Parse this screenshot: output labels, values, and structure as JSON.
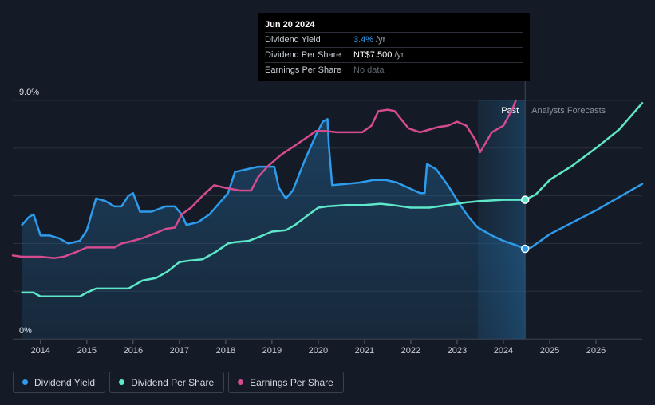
{
  "tooltip": {
    "date": "Jun 20 2024",
    "rows": [
      {
        "label": "Dividend Yield",
        "value": "3.4%",
        "unit": "/yr",
        "color": "#2d9cec"
      },
      {
        "label": "Dividend Per Share",
        "value": "NT$7.500",
        "unit": "/yr",
        "color": "#ffffff"
      },
      {
        "label": "Earnings Per Share",
        "value": "No data",
        "unit": "",
        "color": "#5f6670"
      }
    ]
  },
  "legend": [
    {
      "label": "Dividend Yield",
      "color": "#2d9cec"
    },
    {
      "label": "Dividend Per Share",
      "color": "#5de8c9"
    },
    {
      "label": "Earnings Per Share",
      "color": "#d44b8f"
    }
  ],
  "chart_data": {
    "type": "line",
    "y_axis_labels": [
      "9.0%",
      "0%"
    ],
    "ylim": [
      0,
      9.0
    ],
    "xlim": [
      2013.4,
      2027.0
    ],
    "x_ticks": [
      2014,
      2015,
      2016,
      2017,
      2018,
      2019,
      2020,
      2021,
      2022,
      2023,
      2024,
      2025,
      2026
    ],
    "past_label": "Past",
    "forecast_label": "Analysts Forecasts",
    "forecast_start": 2024.47,
    "shade_start": 2023.45,
    "grid": true,
    "series": [
      {
        "name": "Dividend Yield",
        "color": "#2d9cec",
        "unit": "%",
        "area": true,
        "points": [
          [
            2013.6,
            4.3
          ],
          [
            2013.75,
            4.6
          ],
          [
            2013.85,
            4.7
          ],
          [
            2014.0,
            3.9
          ],
          [
            2014.2,
            3.9
          ],
          [
            2014.4,
            3.8
          ],
          [
            2014.6,
            3.6
          ],
          [
            2014.85,
            3.7
          ],
          [
            2015.0,
            4.1
          ],
          [
            2015.2,
            5.3
          ],
          [
            2015.4,
            5.2
          ],
          [
            2015.6,
            5.0
          ],
          [
            2015.75,
            5.0
          ],
          [
            2015.9,
            5.4
          ],
          [
            2016.0,
            5.5
          ],
          [
            2016.15,
            4.8
          ],
          [
            2016.4,
            4.8
          ],
          [
            2016.7,
            5.0
          ],
          [
            2016.9,
            5.0
          ],
          [
            2017.05,
            4.7
          ],
          [
            2017.15,
            4.3
          ],
          [
            2017.4,
            4.4
          ],
          [
            2017.65,
            4.7
          ],
          [
            2017.85,
            5.1
          ],
          [
            2018.05,
            5.5
          ],
          [
            2018.2,
            6.3
          ],
          [
            2018.45,
            6.4
          ],
          [
            2018.7,
            6.5
          ],
          [
            2018.9,
            6.5
          ],
          [
            2019.05,
            6.5
          ],
          [
            2019.15,
            5.7
          ],
          [
            2019.3,
            5.3
          ],
          [
            2019.45,
            5.6
          ],
          [
            2019.7,
            6.7
          ],
          [
            2019.95,
            7.7
          ],
          [
            2020.1,
            8.2
          ],
          [
            2020.2,
            8.3
          ],
          [
            2020.23,
            7.3
          ],
          [
            2020.3,
            5.8
          ],
          [
            2020.6,
            5.85
          ],
          [
            2020.9,
            5.9
          ],
          [
            2021.2,
            6.0
          ],
          [
            2021.45,
            6.0
          ],
          [
            2021.7,
            5.9
          ],
          [
            2021.95,
            5.7
          ],
          [
            2022.2,
            5.5
          ],
          [
            2022.3,
            5.5
          ],
          [
            2022.35,
            6.6
          ],
          [
            2022.55,
            6.4
          ],
          [
            2022.8,
            5.8
          ],
          [
            2023.05,
            5.1
          ],
          [
            2023.25,
            4.6
          ],
          [
            2023.45,
            4.2
          ],
          [
            2023.75,
            3.9
          ],
          [
            2024.0,
            3.7
          ],
          [
            2024.25,
            3.55
          ],
          [
            2024.47,
            3.4
          ],
          [
            2024.6,
            3.45
          ],
          [
            2024.8,
            3.7
          ],
          [
            2025.0,
            3.95
          ],
          [
            2025.5,
            4.4
          ],
          [
            2026.0,
            4.85
          ],
          [
            2026.5,
            5.35
          ],
          [
            2027.0,
            5.85
          ]
        ]
      },
      {
        "name": "Dividend Per Share",
        "color": "#5de8c9",
        "unit": "NT$",
        "points": [
          [
            2013.6,
            1.75
          ],
          [
            2013.85,
            1.75
          ],
          [
            2014.0,
            1.6
          ],
          [
            2014.5,
            1.6
          ],
          [
            2014.85,
            1.6
          ],
          [
            2015.0,
            1.75
          ],
          [
            2015.2,
            1.9
          ],
          [
            2015.9,
            1.9
          ],
          [
            2016.0,
            2.0
          ],
          [
            2016.2,
            2.2
          ],
          [
            2016.5,
            2.3
          ],
          [
            2016.75,
            2.55
          ],
          [
            2017.0,
            2.9
          ],
          [
            2017.2,
            2.95
          ],
          [
            2017.5,
            3.0
          ],
          [
            2017.8,
            3.3
          ],
          [
            2018.05,
            3.6
          ],
          [
            2018.2,
            3.65
          ],
          [
            2018.5,
            3.7
          ],
          [
            2018.8,
            3.9
          ],
          [
            2019.0,
            4.05
          ],
          [
            2019.3,
            4.1
          ],
          [
            2019.5,
            4.3
          ],
          [
            2019.8,
            4.7
          ],
          [
            2020.0,
            4.95
          ],
          [
            2020.2,
            5.0
          ],
          [
            2020.6,
            5.05
          ],
          [
            2021.0,
            5.05
          ],
          [
            2021.35,
            5.1
          ],
          [
            2021.6,
            5.05
          ],
          [
            2022.0,
            4.95
          ],
          [
            2022.4,
            4.95
          ],
          [
            2022.8,
            5.05
          ],
          [
            2023.2,
            5.15
          ],
          [
            2023.5,
            5.2
          ],
          [
            2024.0,
            5.25
          ],
          [
            2024.47,
            5.25
          ],
          [
            2024.7,
            5.45
          ],
          [
            2025.0,
            6.0
          ],
          [
            2025.5,
            6.55
          ],
          [
            2026.0,
            7.2
          ],
          [
            2026.5,
            7.9
          ],
          [
            2027.0,
            8.9
          ]
        ]
      },
      {
        "name": "Earnings Per Share",
        "color": "#d44b8f",
        "unit": "NT$",
        "points": [
          [
            2013.4,
            3.15
          ],
          [
            2013.6,
            3.1
          ],
          [
            2014.0,
            3.1
          ],
          [
            2014.3,
            3.05
          ],
          [
            2014.5,
            3.1
          ],
          [
            2014.8,
            3.3
          ],
          [
            2015.0,
            3.45
          ],
          [
            2015.3,
            3.45
          ],
          [
            2015.6,
            3.45
          ],
          [
            2015.75,
            3.6
          ],
          [
            2016.0,
            3.7
          ],
          [
            2016.2,
            3.8
          ],
          [
            2016.5,
            4.0
          ],
          [
            2016.7,
            4.15
          ],
          [
            2016.9,
            4.2
          ],
          [
            2017.05,
            4.7
          ],
          [
            2017.25,
            4.95
          ],
          [
            2017.5,
            5.4
          ],
          [
            2017.75,
            5.8
          ],
          [
            2018.0,
            5.7
          ],
          [
            2018.3,
            5.6
          ],
          [
            2018.55,
            5.6
          ],
          [
            2018.7,
            6.1
          ],
          [
            2018.9,
            6.5
          ],
          [
            2019.2,
            6.95
          ],
          [
            2019.5,
            7.3
          ],
          [
            2019.75,
            7.6
          ],
          [
            2019.95,
            7.85
          ],
          [
            2020.15,
            7.85
          ],
          [
            2020.4,
            7.8
          ],
          [
            2020.7,
            7.8
          ],
          [
            2020.95,
            7.8
          ],
          [
            2021.15,
            8.05
          ],
          [
            2021.3,
            8.6
          ],
          [
            2021.5,
            8.65
          ],
          [
            2021.65,
            8.6
          ],
          [
            2021.95,
            7.95
          ],
          [
            2022.2,
            7.8
          ],
          [
            2022.4,
            7.9
          ],
          [
            2022.6,
            8.0
          ],
          [
            2022.8,
            8.05
          ],
          [
            2023.0,
            8.2
          ],
          [
            2023.2,
            8.05
          ],
          [
            2023.4,
            7.5
          ],
          [
            2023.5,
            7.05
          ],
          [
            2023.75,
            7.8
          ],
          [
            2024.0,
            8.05
          ],
          [
            2024.2,
            8.7
          ],
          [
            2024.27,
            9.0
          ]
        ]
      }
    ],
    "markers": [
      {
        "series": "Dividend Yield",
        "x": 2024.47,
        "y": 3.4
      },
      {
        "series": "Dividend Per Share",
        "x": 2024.47,
        "y": 5.25
      }
    ]
  }
}
